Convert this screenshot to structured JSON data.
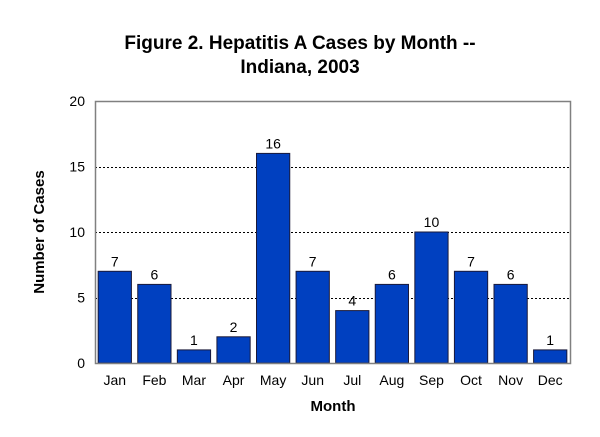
{
  "chart_data": {
    "type": "bar",
    "title_lines": [
      "Figure 2. Hepatitis A Cases by Month --",
      "Indiana, 2003"
    ],
    "xlabel": "Month",
    "ylabel": "Number of Cases",
    "categories": [
      "Jan",
      "Feb",
      "Mar",
      "Apr",
      "May",
      "Jun",
      "Jul",
      "Aug",
      "Sep",
      "Oct",
      "Nov",
      "Dec"
    ],
    "values": [
      7,
      6,
      1,
      2,
      16,
      7,
      4,
      6,
      10,
      7,
      6,
      1
    ],
    "ylim": [
      0,
      20
    ],
    "yticks": [
      0,
      5,
      10,
      15,
      20
    ],
    "grid": true,
    "legend": "none",
    "colors": {
      "bar": "#0040C0",
      "bar_edge": "#1a1a3a",
      "grid": "#000000",
      "frame": "#808080"
    }
  }
}
